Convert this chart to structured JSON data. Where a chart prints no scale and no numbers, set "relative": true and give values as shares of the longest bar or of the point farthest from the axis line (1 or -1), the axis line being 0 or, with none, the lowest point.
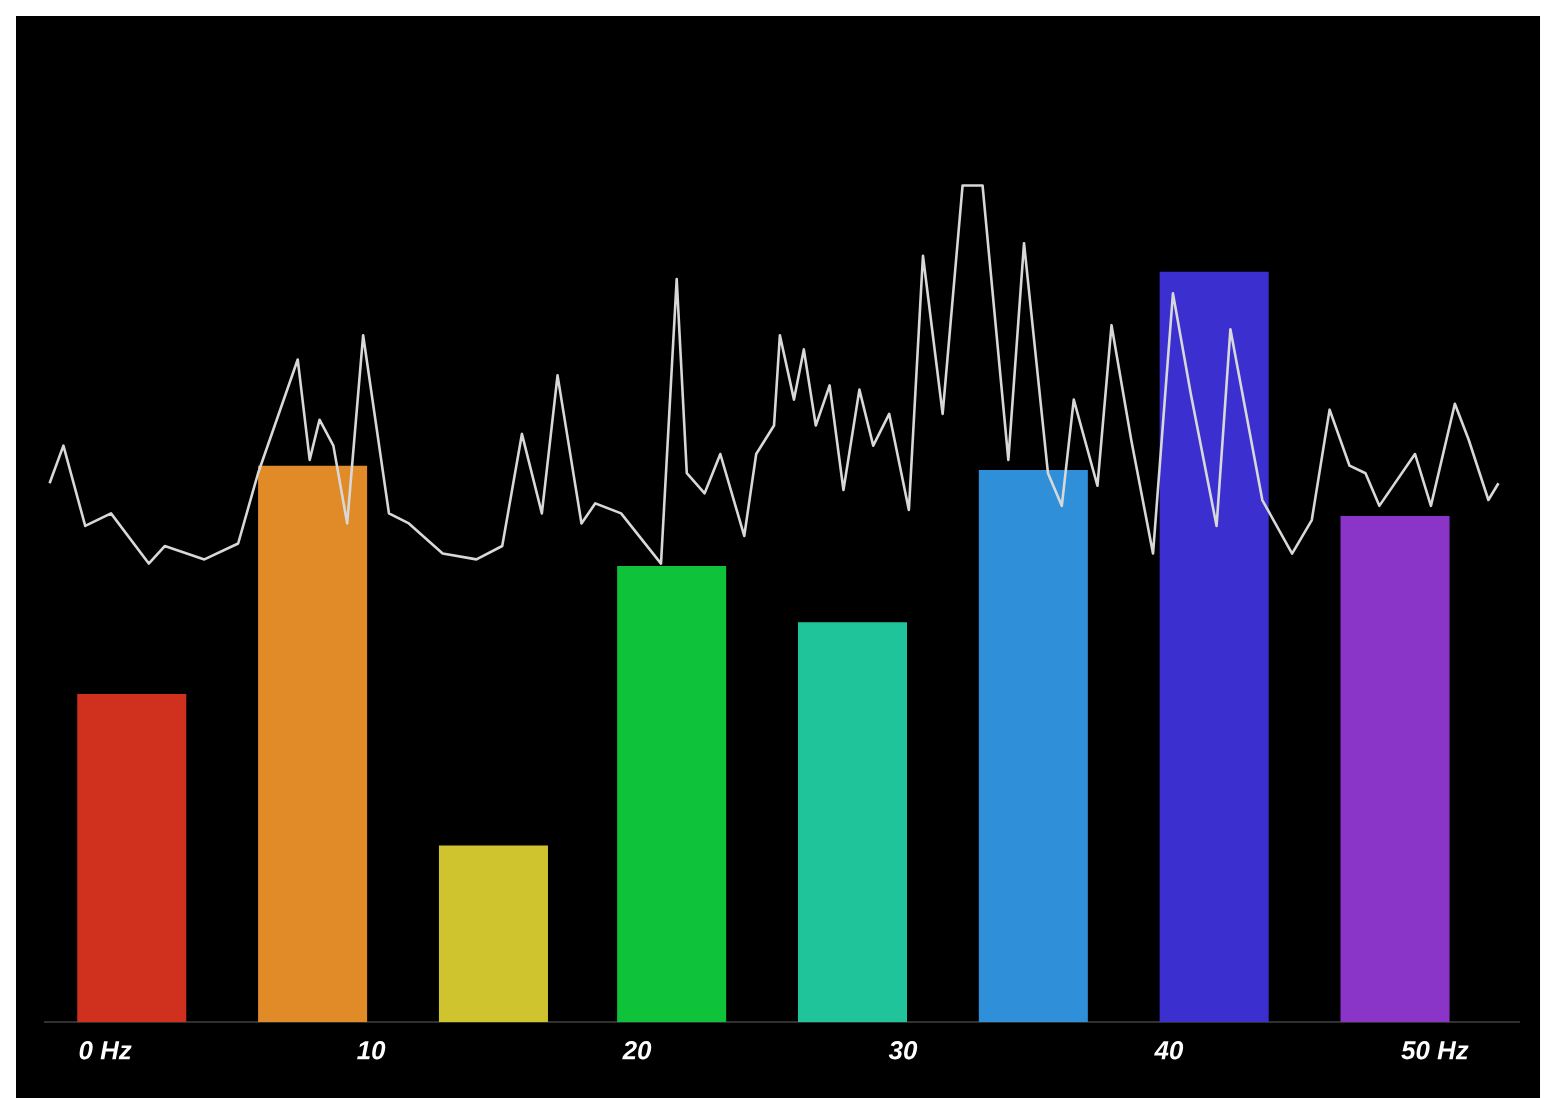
{
  "chart_data": {
    "type": "bar",
    "relative": true,
    "xlim": [
      -2.3,
      53.2
    ],
    "xticks": [
      {
        "value": 0,
        "label": "0 Hz"
      },
      10,
      20,
      30,
      40,
      {
        "value": 50,
        "label": "50 Hz"
      }
    ],
    "series": [
      {
        "x": [
          1.0,
          7.8,
          14.6,
          21.3,
          28.1,
          34.9,
          41.7,
          48.5
        ],
        "values": [
          0.392,
          0.665,
          0.211,
          0.545,
          0.478,
          0.66,
          0.897,
          0.605
        ],
        "colors": [
          "#d0301e",
          "#e08a28",
          "#cfc32e",
          "#0ec23a",
          "#20c49a",
          "#2f8fd8",
          "#3b2fd0",
          "#8a35c8"
        ]
      },
      {
        "type": "line",
        "color": "#d8d8d8",
        "x": [
          -2.09,
          -1.57,
          -0.75,
          0.22,
          1.64,
          2.24,
          3.73,
          5.0,
          5.75,
          7.24,
          7.69,
          8.06,
          8.58,
          9.1,
          9.7,
          10.67,
          11.42,
          12.69,
          13.96,
          14.93,
          15.67,
          16.42,
          17.01,
          17.91,
          18.43,
          19.4,
          20.9,
          21.49,
          21.87,
          22.54,
          23.13,
          24.03,
          24.48,
          25.15,
          25.37,
          25.9,
          26.27,
          26.72,
          27.24,
          27.76,
          28.36,
          28.88,
          29.48,
          30.22,
          30.75,
          31.49,
          32.24,
          32.99,
          33.96,
          34.55,
          35.45,
          35.97,
          36.42,
          37.31,
          37.84,
          38.58,
          39.4,
          40.15,
          40.82,
          41.79,
          42.31,
          43.51,
          44.63,
          45.37,
          46.04,
          46.79,
          47.39,
          47.91,
          49.25,
          49.85,
          50.75,
          51.27,
          52.01,
          52.39
        ],
        "values": [
          0.644,
          0.689,
          0.593,
          0.608,
          0.548,
          0.569,
          0.553,
          0.572,
          0.656,
          0.792,
          0.672,
          0.72,
          0.689,
          0.596,
          0.821,
          0.608,
          0.596,
          0.56,
          0.553,
          0.569,
          0.703,
          0.608,
          0.773,
          0.596,
          0.62,
          0.608,
          0.548,
          0.888,
          0.656,
          0.632,
          0.679,
          0.581,
          0.679,
          0.713,
          0.821,
          0.744,
          0.804,
          0.713,
          0.761,
          0.636,
          0.756,
          0.689,
          0.727,
          0.612,
          0.916,
          0.727,
          1,
          1,
          0.672,
          0.931,
          0.656,
          0.617,
          0.744,
          0.641,
          0.833,
          0.696,
          0.56,
          0.871,
          0.751,
          0.593,
          0.828,
          0.624,
          0.56,
          0.6,
          0.732,
          0.665,
          0.656,
          0.617,
          0.679,
          0.617,
          0.739,
          0.696,
          0.624,
          0.644
        ]
      }
    ]
  }
}
